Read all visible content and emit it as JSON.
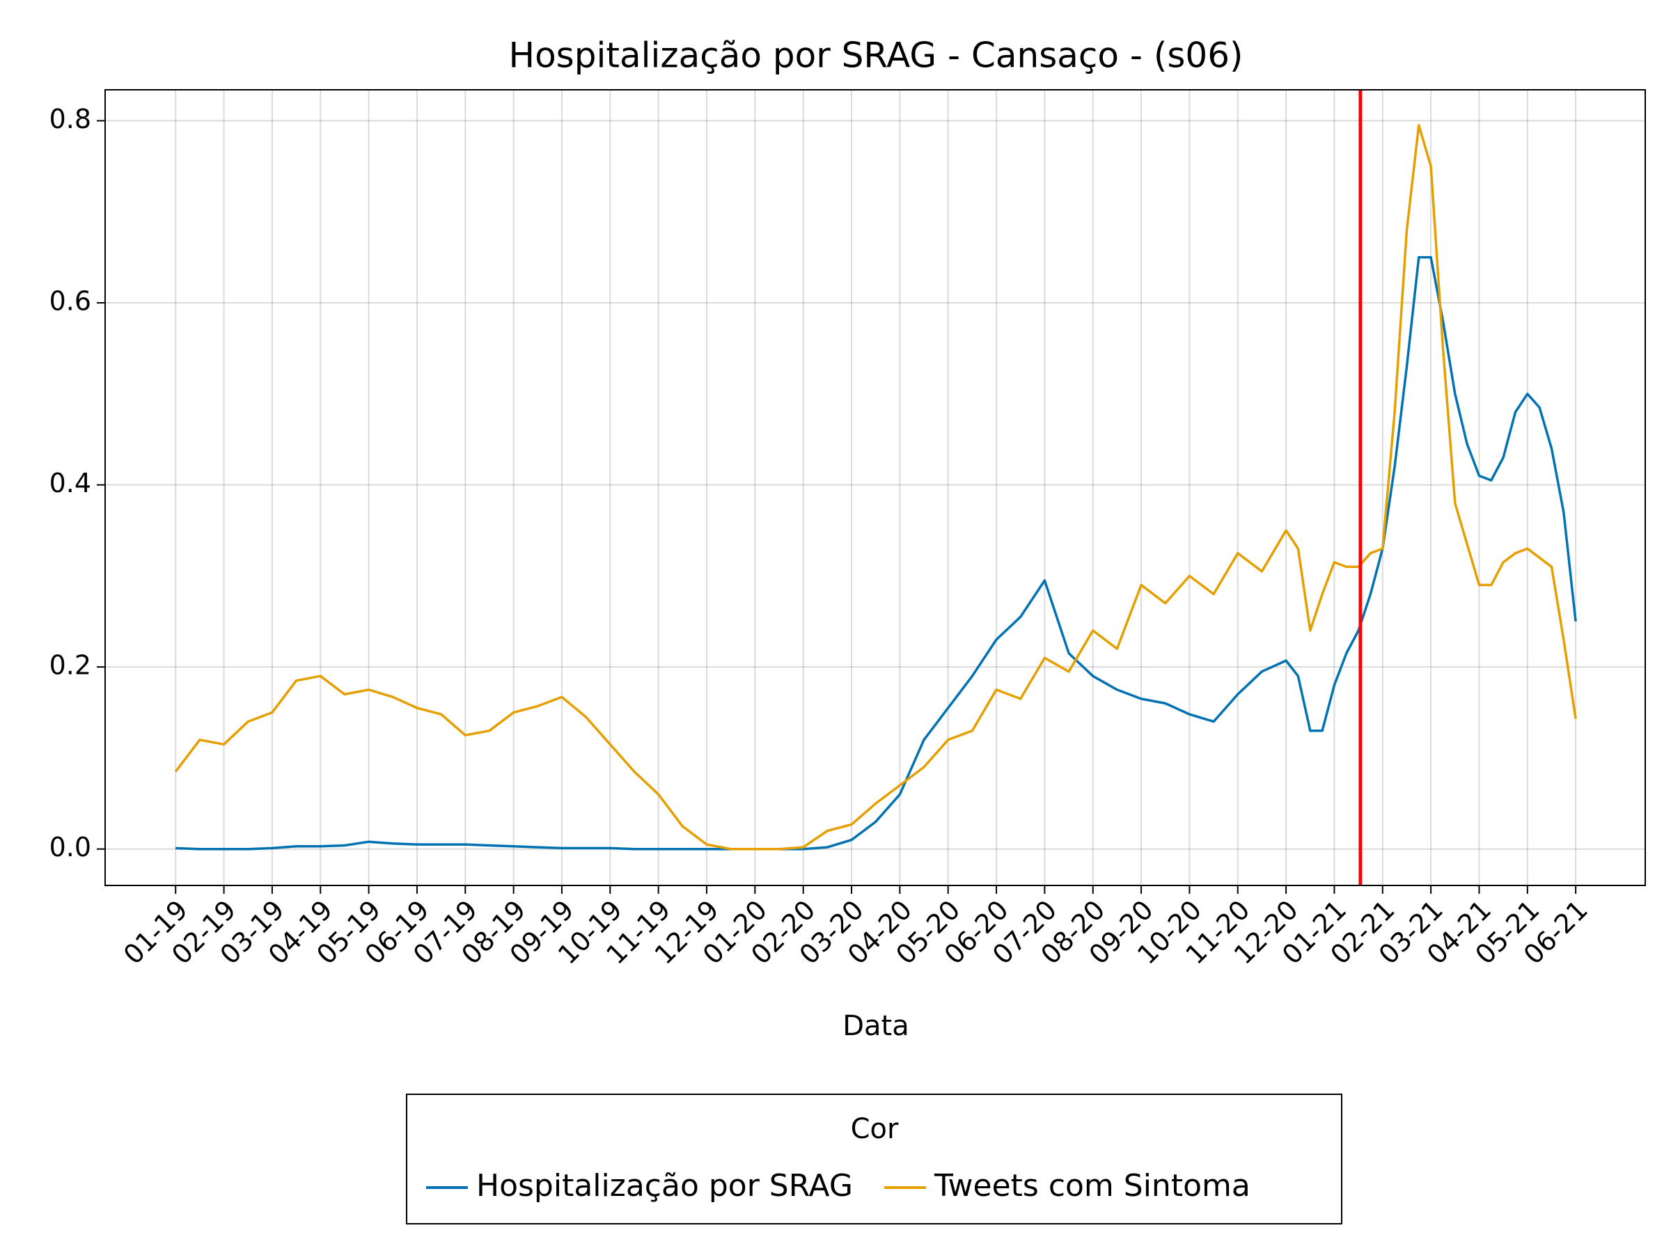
{
  "chart_data": {
    "type": "line",
    "title": "Hospitalização por SRAG - Cansaço - (s06)",
    "xlabel": "Data",
    "legend_title": "Cor",
    "legend": "bottom",
    "grid": true,
    "xlim": [
      -1.46,
      30.44
    ],
    "ylim": [
      -0.04,
      0.834
    ],
    "xticks": [
      {
        "value": 0,
        "label": "01-19"
      },
      {
        "value": 1,
        "label": "02-19"
      },
      {
        "value": 2,
        "label": "03-19"
      },
      {
        "value": 3,
        "label": "04-19"
      },
      {
        "value": 4,
        "label": "05-19"
      },
      {
        "value": 5,
        "label": "06-19"
      },
      {
        "value": 6,
        "label": "07-19"
      },
      {
        "value": 7,
        "label": "08-19"
      },
      {
        "value": 8,
        "label": "09-19"
      },
      {
        "value": 9,
        "label": "10-19"
      },
      {
        "value": 10,
        "label": "11-19"
      },
      {
        "value": 11,
        "label": "12-19"
      },
      {
        "value": 12,
        "label": "01-20"
      },
      {
        "value": 13,
        "label": "02-20"
      },
      {
        "value": 14,
        "label": "03-20"
      },
      {
        "value": 15,
        "label": "04-20"
      },
      {
        "value": 16,
        "label": "05-20"
      },
      {
        "value": 17,
        "label": "06-20"
      },
      {
        "value": 18,
        "label": "07-20"
      },
      {
        "value": 19,
        "label": "08-20"
      },
      {
        "value": 20,
        "label": "09-20"
      },
      {
        "value": 21,
        "label": "10-20"
      },
      {
        "value": 22,
        "label": "11-20"
      },
      {
        "value": 23,
        "label": "12-20"
      },
      {
        "value": 24,
        "label": "01-21"
      },
      {
        "value": 25,
        "label": "02-21"
      },
      {
        "value": 26,
        "label": "03-21"
      },
      {
        "value": 27,
        "label": "04-21"
      },
      {
        "value": 28,
        "label": "05-21"
      },
      {
        "value": 29,
        "label": "06-21"
      }
    ],
    "yticks": [
      {
        "value": 0,
        "label": "0.0"
      },
      0.2,
      0.4,
      0.6,
      0.8
    ],
    "vline": {
      "x": 24.54,
      "color": "#ff0000"
    },
    "x": [
      0,
      0.5,
      1,
      1.5,
      2,
      2.5,
      3,
      3.5,
      4,
      4.5,
      5,
      5.5,
      6,
      6.5,
      7,
      7.5,
      8,
      8.5,
      9,
      9.5,
      10,
      10.5,
      11,
      11.5,
      12,
      12.5,
      13,
      13.5,
      14,
      14.5,
      15,
      15.5,
      16,
      16.5,
      17,
      17.5,
      18,
      18.5,
      19,
      19.5,
      20,
      20.5,
      21,
      21.5,
      22,
      22.5,
      23,
      23.25,
      23.5,
      23.75,
      24,
      24.25,
      24.5,
      24.75,
      25,
      25.25,
      25.5,
      25.75,
      26,
      26.25,
      26.5,
      26.75,
      27,
      27.25,
      27.5,
      27.75,
      28,
      28.25,
      28.5,
      28.75,
      29
    ],
    "series": [
      {
        "name": "Hospitalização por SRAG",
        "color": "#0072b2",
        "values": [
          0.001,
          0,
          0,
          0,
          0.001,
          0.003,
          0.003,
          0.004,
          0.008,
          0.006,
          0.005,
          0.005,
          0.005,
          0.004,
          0.003,
          0.002,
          0.001,
          0.001,
          0.001,
          0,
          0,
          0,
          0,
          0,
          0,
          0,
          0,
          0.002,
          0.01,
          0.03,
          0.06,
          0.12,
          0.155,
          0.19,
          0.23,
          0.255,
          0.295,
          0.215,
          0.19,
          0.175,
          0.165,
          0.16,
          0.148,
          0.14,
          0.17,
          0.195,
          0.207,
          0.19,
          0.13,
          0.13,
          0.18,
          0.215,
          0.24,
          0.28,
          0.33,
          0.42,
          0.53,
          0.65,
          0.65,
          0.58,
          0.5,
          0.445,
          0.41,
          0.405,
          0.43,
          0.48,
          0.5,
          0.485,
          0.44,
          0.37,
          0.25
        ]
      },
      {
        "name": "Tweets com Sintoma",
        "color": "#e69f00",
        "values": [
          0.085,
          0.12,
          0.115,
          0.14,
          0.15,
          0.185,
          0.19,
          0.17,
          0.175,
          0.167,
          0.155,
          0.148,
          0.125,
          0.13,
          0.15,
          0.157,
          0.167,
          0.145,
          0.115,
          0.085,
          0.06,
          0.025,
          0.005,
          0,
          0,
          0,
          0.002,
          0.02,
          0.027,
          0.05,
          0.07,
          0.09,
          0.12,
          0.13,
          0.175,
          0.165,
          0.21,
          0.195,
          0.24,
          0.22,
          0.29,
          0.27,
          0.3,
          0.28,
          0.325,
          0.305,
          0.35,
          0.33,
          0.24,
          0.28,
          0.315,
          0.31,
          0.31,
          0.325,
          0.33,
          0.48,
          0.68,
          0.795,
          0.75,
          0.55,
          0.38,
          0.335,
          0.29,
          0.29,
          0.315,
          0.325,
          0.33,
          0.32,
          0.31,
          0.23,
          0.143
        ]
      }
    ]
  }
}
